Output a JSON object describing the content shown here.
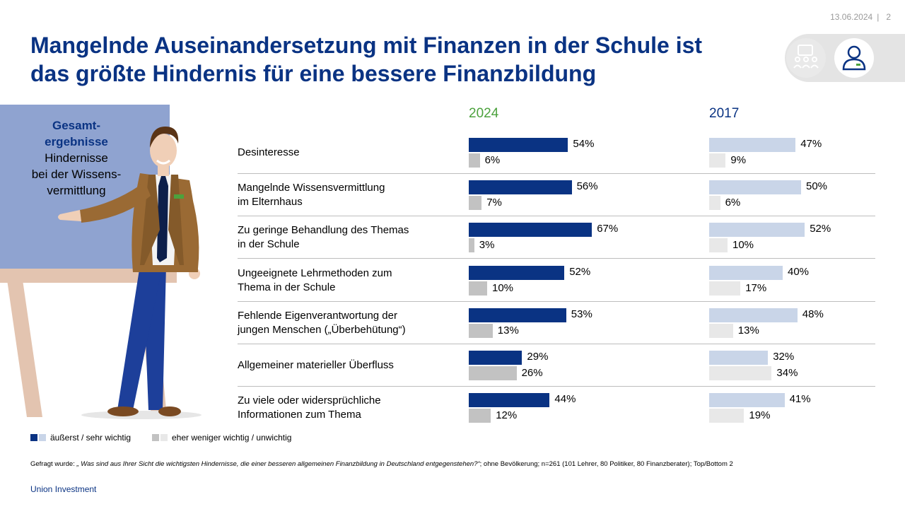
{
  "header": {
    "date": "13.06.2024",
    "separator": "|",
    "page_number": "2"
  },
  "title": {
    "line1": "Mangelnde Auseinandersetzung mit Finanzen in der Schule ist",
    "line2": "das größte Hindernis für eine bessere Finanzbildung"
  },
  "board": {
    "line1": "Gesamt-",
    "line2": "ergebnisse",
    "line3": "Hindernisse",
    "line4": "bei der Wissens-",
    "line5": "vermittlung"
  },
  "legend": {
    "important": "äußerst / sehr wichtig",
    "unimportant": "eher weniger wichtig / unwichtig"
  },
  "footnote": {
    "prefix": "Gefragt wurde: ",
    "question": "„ Was sind aus Ihrer Sicht die wichtigsten Hindernisse, die einer besseren allgemeinen Finanzbildung in Deutschland entgegenstehen?“",
    "suffix": "; ohne Bevölkerung; n=261 (101 Lehrer, 80 Politiker,  80 Finanzberater); Top/Bottom 2"
  },
  "brand": "Union Investment",
  "colors": {
    "title": "#0a3383",
    "bar_2024_top": "#0a3383",
    "bar_2024_bottom": "#c2c2c2",
    "bar_2017_top": "#c9d5e8",
    "bar_2017_bottom": "#e8e8e8",
    "year_2024": "#4ca23d",
    "year_2017": "#0a3383"
  },
  "chart_data": {
    "type": "bar",
    "orientation": "horizontal",
    "unit": "%",
    "panels": [
      "2024",
      "2017"
    ],
    "categories": [
      [
        "Desinteresse"
      ],
      [
        "Mangelnde Wissensvermittlung",
        "im Elternhaus"
      ],
      [
        "Zu geringe Behandlung des Themas",
        "in der Schule"
      ],
      [
        "Ungeeignete Lehrmethoden zum",
        "Thema in der Schule"
      ],
      [
        "Fehlende Eigenverantwortung der",
        "jungen Menschen („Überbehütung“)"
      ],
      [
        "Allgemeiner materieller Überfluss"
      ],
      [
        "Zu viele oder widersprüchliche",
        "Informationen zum Thema"
      ]
    ],
    "series": [
      {
        "name": "äußerst / sehr wichtig",
        "year": "2024",
        "values": [
          54,
          56,
          67,
          52,
          53,
          29,
          44
        ]
      },
      {
        "name": "eher weniger wichtig / unwichtig",
        "year": "2024",
        "values": [
          6,
          7,
          3,
          10,
          13,
          26,
          12
        ]
      },
      {
        "name": "äußerst / sehr wichtig",
        "year": "2017",
        "values": [
          47,
          50,
          52,
          40,
          48,
          32,
          41
        ]
      },
      {
        "name": "eher weniger wichtig / unwichtig",
        "year": "2017",
        "values": [
          9,
          6,
          10,
          17,
          13,
          34,
          19
        ]
      }
    ],
    "xlim": [
      0,
      100
    ],
    "grid": false,
    "legend_position": "bottom-left"
  }
}
